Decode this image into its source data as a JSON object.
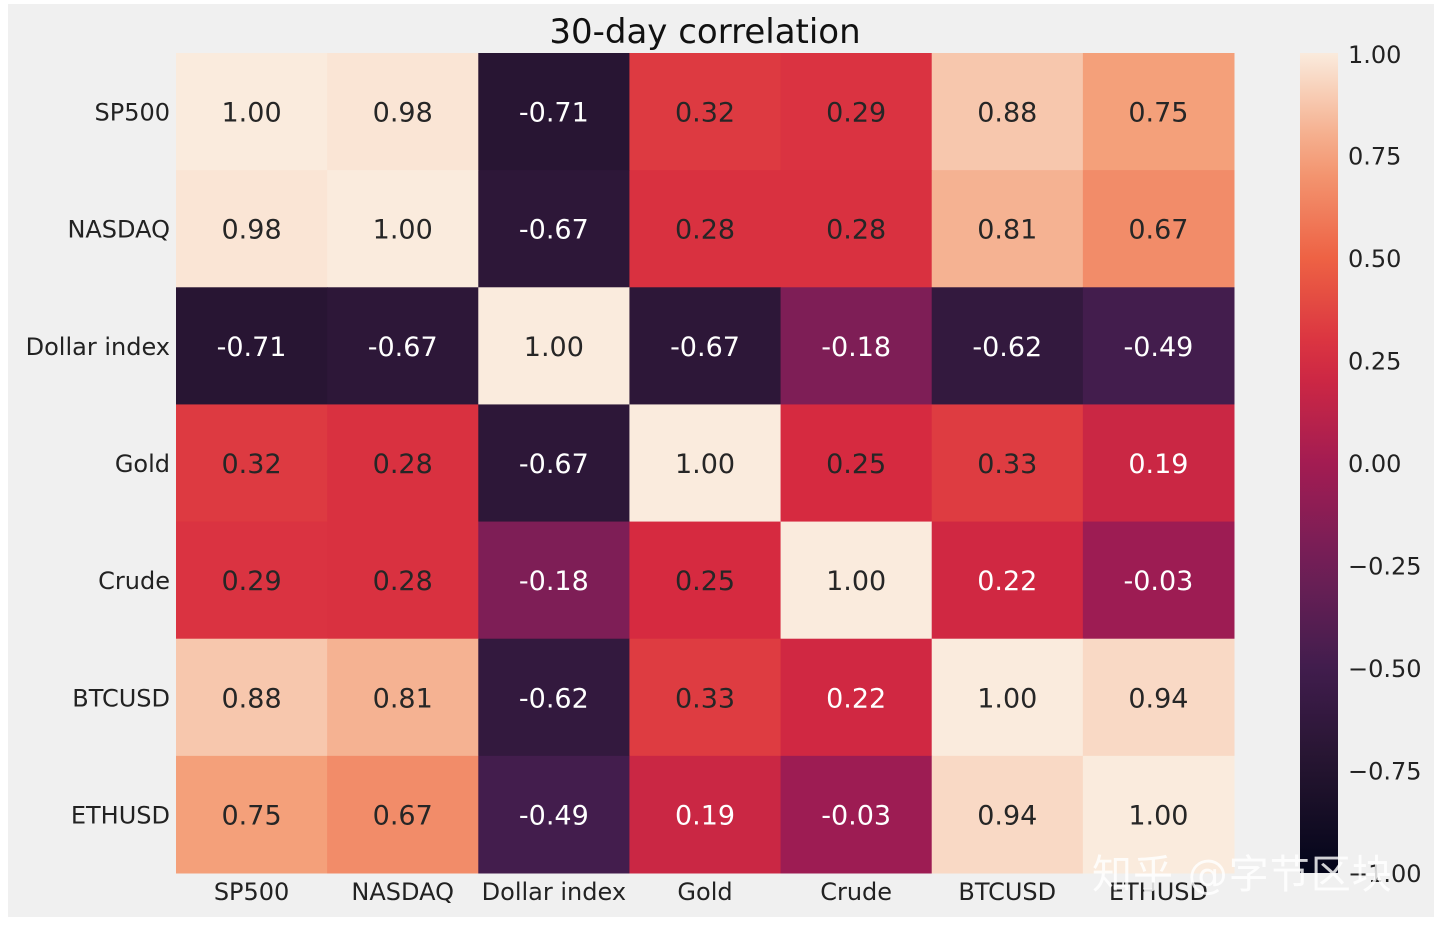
{
  "chart_data": {
    "type": "heatmap",
    "title": "30-day correlation",
    "xlabel": "",
    "ylabel": "",
    "categories": [
      "SP500",
      "NASDAQ",
      "Dollar index",
      "Gold",
      "Crude",
      "BTCUSD",
      "ETHUSD"
    ],
    "values": [
      [
        1.0,
        0.98,
        -0.71,
        0.32,
        0.29,
        0.88,
        0.75
      ],
      [
        0.98,
        1.0,
        -0.67,
        0.28,
        0.28,
        0.81,
        0.67
      ],
      [
        -0.71,
        -0.67,
        1.0,
        -0.67,
        -0.18,
        -0.62,
        -0.49
      ],
      [
        0.32,
        0.28,
        -0.67,
        1.0,
        0.25,
        0.33,
        0.19
      ],
      [
        0.29,
        0.28,
        -0.18,
        0.25,
        1.0,
        0.22,
        -0.03
      ],
      [
        0.88,
        0.81,
        -0.62,
        0.33,
        0.22,
        1.0,
        0.94
      ],
      [
        0.75,
        0.67,
        -0.49,
        0.19,
        -0.03,
        0.94,
        1.0
      ]
    ],
    "colorbar": {
      "range": [
        -1.0,
        1.0
      ],
      "ticks": [
        1.0,
        0.75,
        0.5,
        0.25,
        0.0,
        -0.25,
        -0.5,
        -0.75,
        -1.0
      ],
      "tick_labels": [
        "1.00",
        "0.75",
        "0.50",
        "0.25",
        "0.00",
        "−0.25",
        "−0.50",
        "−0.75",
        "−1.00"
      ],
      "colormap": "rocket"
    },
    "grid": false
  },
  "watermark": "知乎 @字节区块"
}
